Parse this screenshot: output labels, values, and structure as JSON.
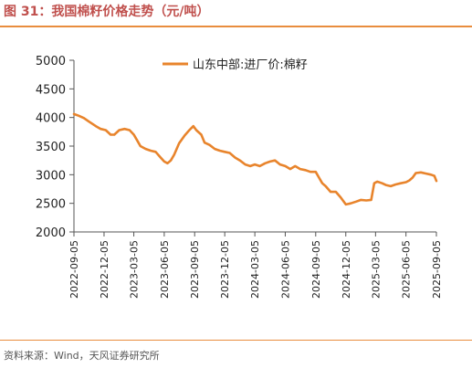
{
  "figure": {
    "title": "图 31：我国棉籽价格走势（元/吨）",
    "source": "资料来源：Wind，天风证券研究所"
  },
  "chart_data": {
    "type": "line",
    "title": "",
    "xlabel": "",
    "ylabel": "",
    "ylim": [
      2000,
      5000
    ],
    "yticks": [
      2000,
      2500,
      3000,
      3500,
      4000,
      4500,
      5000
    ],
    "xlim": [
      "2022-09-05",
      "2025-09-05"
    ],
    "xticks": [
      "2022-09-05",
      "2022-12-05",
      "2023-03-05",
      "2023-06-05",
      "2023-09-05",
      "2023-12-05",
      "2024-03-05",
      "2024-06-05",
      "2024-09-05",
      "2024-12-05",
      "2025-03-05",
      "2025-06-05",
      "2025-09-05"
    ],
    "grid": false,
    "legend": "top-center",
    "series": [
      {
        "name": "山东中部:进厂价:棉籽",
        "color": "#e8842c",
        "points": [
          [
            "2022-09-05",
            4060
          ],
          [
            "2022-09-20",
            4030
          ],
          [
            "2022-10-05",
            3990
          ],
          [
            "2022-10-20",
            3930
          ],
          [
            "2022-11-10",
            3850
          ],
          [
            "2022-11-25",
            3800
          ],
          [
            "2022-12-10",
            3780
          ],
          [
            "2022-12-25",
            3700
          ],
          [
            "2023-01-05",
            3700
          ],
          [
            "2023-01-20",
            3780
          ],
          [
            "2023-02-05",
            3800
          ],
          [
            "2023-02-20",
            3780
          ],
          [
            "2023-03-05",
            3700
          ],
          [
            "2023-03-15",
            3600
          ],
          [
            "2023-03-25",
            3500
          ],
          [
            "2023-04-10",
            3450
          ],
          [
            "2023-04-25",
            3420
          ],
          [
            "2023-05-10",
            3400
          ],
          [
            "2023-05-25",
            3300
          ],
          [
            "2023-06-05",
            3230
          ],
          [
            "2023-06-15",
            3200
          ],
          [
            "2023-06-25",
            3250
          ],
          [
            "2023-07-05",
            3350
          ],
          [
            "2023-07-20",
            3550
          ],
          [
            "2023-08-05",
            3680
          ],
          [
            "2023-08-20",
            3780
          ],
          [
            "2023-09-01",
            3850
          ],
          [
            "2023-09-10",
            3780
          ],
          [
            "2023-09-25",
            3700
          ],
          [
            "2023-10-05",
            3560
          ],
          [
            "2023-10-20",
            3520
          ],
          [
            "2023-11-05",
            3450
          ],
          [
            "2023-11-20",
            3420
          ],
          [
            "2023-12-05",
            3400
          ],
          [
            "2023-12-20",
            3380
          ],
          [
            "2024-01-05",
            3300
          ],
          [
            "2024-01-20",
            3250
          ],
          [
            "2024-02-05",
            3180
          ],
          [
            "2024-02-20",
            3150
          ],
          [
            "2024-03-05",
            3180
          ],
          [
            "2024-03-20",
            3150
          ],
          [
            "2024-04-05",
            3200
          ],
          [
            "2024-04-20",
            3230
          ],
          [
            "2024-05-05",
            3250
          ],
          [
            "2024-05-20",
            3180
          ],
          [
            "2024-06-05",
            3150
          ],
          [
            "2024-06-20",
            3100
          ],
          [
            "2024-07-05",
            3150
          ],
          [
            "2024-07-20",
            3100
          ],
          [
            "2024-08-05",
            3080
          ],
          [
            "2024-08-20",
            3050
          ],
          [
            "2024-09-05",
            3050
          ],
          [
            "2024-09-15",
            2950
          ],
          [
            "2024-09-25",
            2850
          ],
          [
            "2024-10-05",
            2800
          ],
          [
            "2024-10-20",
            2700
          ],
          [
            "2024-11-05",
            2700
          ],
          [
            "2024-11-20",
            2600
          ],
          [
            "2024-12-05",
            2480
          ],
          [
            "2024-12-20",
            2500
          ],
          [
            "2025-01-05",
            2530
          ],
          [
            "2025-01-20",
            2560
          ],
          [
            "2025-02-05",
            2550
          ],
          [
            "2025-02-20",
            2560
          ],
          [
            "2025-03-01",
            2850
          ],
          [
            "2025-03-10",
            2880
          ],
          [
            "2025-03-25",
            2850
          ],
          [
            "2025-04-05",
            2820
          ],
          [
            "2025-04-20",
            2800
          ],
          [
            "2025-05-05",
            2830
          ],
          [
            "2025-05-20",
            2850
          ],
          [
            "2025-06-05",
            2870
          ],
          [
            "2025-06-15",
            2900
          ],
          [
            "2025-06-25",
            2950
          ],
          [
            "2025-07-05",
            3030
          ],
          [
            "2025-07-20",
            3040
          ],
          [
            "2025-08-05",
            3020
          ],
          [
            "2025-08-20",
            3000
          ],
          [
            "2025-08-30",
            2980
          ],
          [
            "2025-09-05",
            2890
          ]
        ]
      }
    ]
  }
}
